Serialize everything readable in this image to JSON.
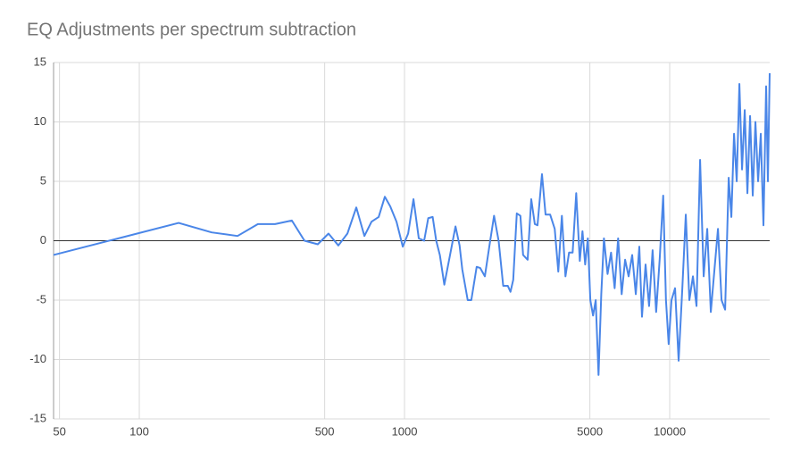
{
  "chart_data": {
    "type": "line",
    "title": "EQ Adjustments per spectrum subtraction",
    "xscale": "log",
    "grid": true,
    "color": "#4a86e8",
    "xlim": [
      47.5,
      23822
    ],
    "xticks": [
      50,
      100,
      500,
      1000,
      5000,
      10000
    ],
    "ylim": [
      -15,
      15
    ],
    "yticks": [
      -15,
      -10,
      -5,
      0,
      5,
      10,
      15
    ],
    "x": [
      47.5,
      140.7,
      187.4,
      234.6,
      280,
      325,
      376,
      419.6,
      471,
      517,
      563,
      609,
      658,
      706,
      751,
      799,
      843,
      883,
      933,
      985,
      1032,
      1081,
      1132,
      1186,
      1229,
      1277,
      1317,
      1359,
      1413,
      1485,
      1557,
      1613,
      1651,
      1731,
      1786,
      1871,
      1930,
      2009,
      2091,
      2176,
      2264,
      2356,
      2452,
      2510,
      2570,
      2651,
      2735,
      2800,
      2913,
      3005,
      3100,
      3173,
      3299,
      3403,
      3541,
      3685,
      3801,
      3921,
      4045,
      4173,
      4305,
      4441,
      4581,
      4689,
      4799,
      4912,
      5020,
      5140,
      5260,
      5390,
      5520,
      5650,
      5830,
      6010,
      6200,
      6390,
      6590,
      6790,
      7000,
      7220,
      7450,
      7680,
      7860,
      8110,
      8360,
      8620,
      8890,
      9170,
      9450,
      9680,
      9910,
      10156,
      10476,
      10806,
      11147,
      11499,
      11862,
      12235,
      12621,
      13019,
      13430,
      13853,
      14290,
      14740,
      15205,
      15685,
      16179,
      16689,
      17081,
      17481,
      17892,
      18312,
      18742,
      19183,
      19633,
      20094,
      20566,
      21049,
      21544,
      22050,
      22568,
      23098,
      23458,
      23822
    ],
    "values": [
      -1.2,
      1.5,
      0.7,
      0.4,
      1.4,
      1.4,
      1.7,
      0.0,
      -0.3,
      0.6,
      -0.4,
      0.6,
      2.8,
      0.4,
      1.6,
      2.0,
      3.7,
      2.9,
      1.6,
      -0.5,
      0.6,
      3.5,
      0.2,
      0.0,
      1.9,
      2.0,
      0.0,
      -1.2,
      -3.7,
      -1.2,
      1.2,
      -0.4,
      -2.4,
      -5.0,
      -5.0,
      -2.2,
      -2.3,
      -3.0,
      -0.4,
      2.1,
      0.0,
      -3.8,
      -3.8,
      -4.3,
      -3.3,
      2.3,
      2.1,
      -1.2,
      -1.6,
      3.5,
      1.4,
      1.3,
      5.6,
      2.2,
      2.2,
      1.0,
      -2.6,
      2.1,
      -3.0,
      -1.0,
      -1.0,
      4.0,
      -1.7,
      0.8,
      -2.0,
      0.2,
      -5.0,
      -6.3,
      -5.0,
      -11.3,
      -4.5,
      0.2,
      -2.8,
      -1.0,
      -4.0,
      0.2,
      -4.5,
      -1.6,
      -3.0,
      -1.2,
      -4.5,
      -0.5,
      -6.4,
      -2.0,
      -5.5,
      -0.8,
      -6.0,
      -1.5,
      3.8,
      -5.0,
      -8.7,
      -5.0,
      -4.0,
      -10.1,
      -4.2,
      2.2,
      -5.0,
      -3.0,
      -5.5,
      6.8,
      -3.0,
      1.0,
      -6.0,
      -2.5,
      1.0,
      -5.0,
      -5.8,
      5.3,
      2.0,
      9.0,
      5.0,
      13.2,
      6.0,
      11.0,
      4.0,
      10.5,
      3.8,
      10.0,
      5.0,
      9.0,
      1.3,
      13.0,
      5.0,
      14.1
    ]
  }
}
